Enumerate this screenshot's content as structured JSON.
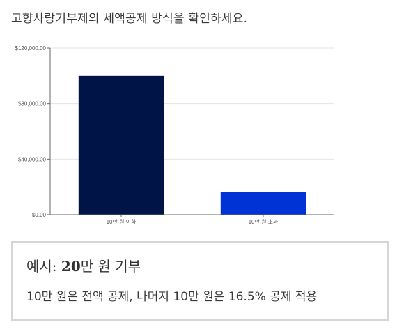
{
  "heading": "고향사랑기부제의 세액공제 방식을 확인하세요.",
  "chart_data": {
    "type": "bar",
    "categories": [
      "10만 원 이하",
      "10만 원 초과"
    ],
    "values": [
      100000,
      16500
    ],
    "bar_colors": [
      "#001447",
      "#0033d6"
    ],
    "ylim": [
      0,
      120000
    ],
    "yticks": [
      0,
      40000,
      80000,
      120000
    ],
    "ytick_labels": [
      "$0.00",
      "$40,000.00",
      "$80,000.00",
      "$120,000.00"
    ],
    "grid": true,
    "title": "",
    "xlabel": "",
    "ylabel": ""
  },
  "example": {
    "title_prefix": "예시: ",
    "title_amount": "20",
    "title_suffix": "만 원 기부",
    "description": "10만 원은 전액 공제, 나머지 10만 원은 16.5% 공제 적용"
  }
}
